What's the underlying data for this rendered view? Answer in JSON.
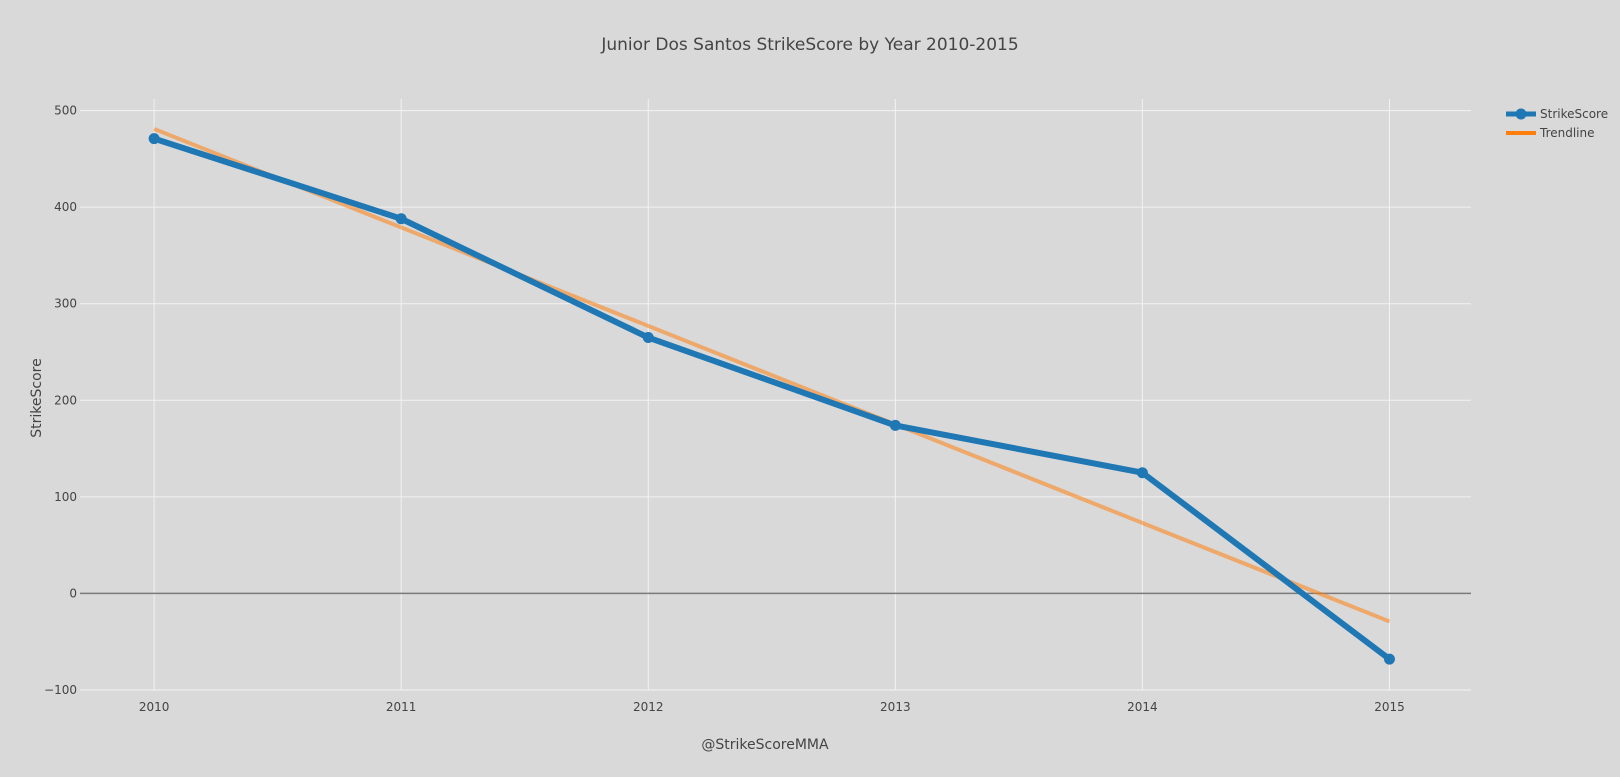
{
  "chart_data": {
    "type": "line",
    "title": "Junior Dos Santos StrikeScore by Year 2010-2015",
    "xlabel": "@StrikeScoreMMA",
    "ylabel": "StrikeScore",
    "x": [
      2010,
      2011,
      2012,
      2013,
      2014,
      2015
    ],
    "x_tick_labels": [
      "2010",
      "2011",
      "2012",
      "2013",
      "2014",
      "2015"
    ],
    "xlim": [
      2009.7,
      2015.33
    ],
    "ylim": [
      -100,
      512
    ],
    "y_ticks": [
      -100,
      0,
      100,
      200,
      300,
      400,
      500
    ],
    "y_tick_labels": [
      "−100",
      "0",
      "100",
      "200",
      "300",
      "400",
      "500"
    ],
    "grid": true,
    "legend_position": "top-right",
    "series": [
      {
        "name": "StrikeScore",
        "values": [
          471,
          388,
          265,
          174,
          125,
          -68
        ],
        "color": "#1f77b4",
        "mode": "lines+markers"
      },
      {
        "name": "Trendline",
        "values": [
          481,
          379,
          277,
          175,
          73,
          -29
        ],
        "color": "#ff7f0e",
        "mode": "lines"
      }
    ]
  }
}
